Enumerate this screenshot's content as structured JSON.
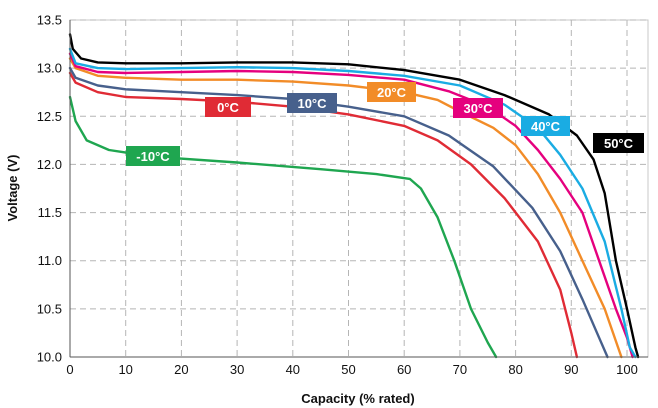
{
  "chart_data": {
    "type": "line",
    "title": "",
    "xlabel": "Capacity (% rated)",
    "ylabel": "Voltage (V)",
    "xlim": [
      0,
      102
    ],
    "ylim": [
      10.0,
      13.5
    ],
    "xticks": [
      0,
      10,
      20,
      30,
      40,
      50,
      60,
      70,
      80,
      90,
      100
    ],
    "yticks": [
      10.0,
      10.5,
      11.0,
      11.5,
      12.0,
      12.5,
      13.0,
      13.5
    ],
    "ytick_labels": [
      "10.0",
      "10.5",
      "11.0",
      "11.5",
      "12.0",
      "12.5",
      "13.0",
      "13.5"
    ],
    "grid": true,
    "grid_style": "dashed",
    "series": [
      {
        "name": "-10°C",
        "color": "#1fa650",
        "points": [
          [
            0,
            12.7
          ],
          [
            1,
            12.45
          ],
          [
            3,
            12.25
          ],
          [
            7,
            12.15
          ],
          [
            15,
            12.08
          ],
          [
            30,
            12.02
          ],
          [
            45,
            11.95
          ],
          [
            55,
            11.9
          ],
          [
            61,
            11.85
          ],
          [
            63,
            11.75
          ],
          [
            66,
            11.45
          ],
          [
            69,
            11.0
          ],
          [
            72,
            10.5
          ],
          [
            75,
            10.15
          ],
          [
            76.5,
            10.0
          ]
        ]
      },
      {
        "name": "0°C",
        "color": "#e02b35",
        "points": [
          [
            0,
            12.95
          ],
          [
            1,
            12.85
          ],
          [
            5,
            12.75
          ],
          [
            10,
            12.7
          ],
          [
            20,
            12.68
          ],
          [
            30,
            12.65
          ],
          [
            40,
            12.6
          ],
          [
            50,
            12.52
          ],
          [
            60,
            12.4
          ],
          [
            66,
            12.25
          ],
          [
            72,
            12.0
          ],
          [
            78,
            11.65
          ],
          [
            84,
            11.2
          ],
          [
            88,
            10.7
          ],
          [
            90,
            10.25
          ],
          [
            91,
            10.0
          ]
        ]
      },
      {
        "name": "10°C",
        "color": "#47608c",
        "points": [
          [
            0,
            13.0
          ],
          [
            1,
            12.9
          ],
          [
            5,
            12.82
          ],
          [
            10,
            12.78
          ],
          [
            20,
            12.75
          ],
          [
            30,
            12.72
          ],
          [
            40,
            12.68
          ],
          [
            50,
            12.6
          ],
          [
            60,
            12.5
          ],
          [
            68,
            12.3
          ],
          [
            76,
            11.98
          ],
          [
            83,
            11.55
          ],
          [
            88,
            11.1
          ],
          [
            92,
            10.6
          ],
          [
            95,
            10.2
          ],
          [
            96.5,
            10.0
          ]
        ]
      },
      {
        "name": "20°C",
        "color": "#f28c28",
        "points": [
          [
            0,
            13.1
          ],
          [
            1,
            13.0
          ],
          [
            5,
            12.92
          ],
          [
            10,
            12.9
          ],
          [
            20,
            12.88
          ],
          [
            30,
            12.88
          ],
          [
            40,
            12.86
          ],
          [
            50,
            12.82
          ],
          [
            60,
            12.75
          ],
          [
            66,
            12.67
          ],
          [
            70,
            12.55
          ],
          [
            76,
            12.38
          ],
          [
            80,
            12.2
          ],
          [
            84,
            11.9
          ],
          [
            88,
            11.5
          ],
          [
            92,
            11.0
          ],
          [
            96,
            10.5
          ],
          [
            99,
            10.0
          ]
        ]
      },
      {
        "name": "30°C",
        "color": "#e5007e",
        "points": [
          [
            0,
            13.15
          ],
          [
            1,
            13.02
          ],
          [
            5,
            12.96
          ],
          [
            10,
            12.95
          ],
          [
            20,
            12.96
          ],
          [
            30,
            12.97
          ],
          [
            40,
            12.96
          ],
          [
            50,
            12.93
          ],
          [
            60,
            12.88
          ],
          [
            68,
            12.76
          ],
          [
            75,
            12.6
          ],
          [
            80,
            12.4
          ],
          [
            84,
            12.15
          ],
          [
            88,
            11.85
          ],
          [
            92,
            11.5
          ],
          [
            95,
            11.0
          ],
          [
            98,
            10.5
          ],
          [
            100,
            10.2
          ],
          [
            101,
            10.0
          ]
        ]
      },
      {
        "name": "40°C",
        "color": "#1aace3",
        "points": [
          [
            0,
            13.2
          ],
          [
            1,
            13.05
          ],
          [
            5,
            13.0
          ],
          [
            10,
            12.99
          ],
          [
            20,
            13.0
          ],
          [
            30,
            13.01
          ],
          [
            40,
            13.0
          ],
          [
            50,
            12.97
          ],
          [
            60,
            12.92
          ],
          [
            70,
            12.82
          ],
          [
            78,
            12.62
          ],
          [
            84,
            12.38
          ],
          [
            88,
            12.1
          ],
          [
            92,
            11.75
          ],
          [
            96,
            11.2
          ],
          [
            99,
            10.5
          ],
          [
            100.5,
            10.1
          ],
          [
            101.5,
            10.0
          ]
        ]
      },
      {
        "name": "50°C",
        "color": "#000000",
        "points": [
          [
            0,
            13.35
          ],
          [
            0.5,
            13.2
          ],
          [
            2,
            13.1
          ],
          [
            5,
            13.06
          ],
          [
            10,
            13.05
          ],
          [
            20,
            13.05
          ],
          [
            30,
            13.06
          ],
          [
            40,
            13.06
          ],
          [
            50,
            13.04
          ],
          [
            60,
            12.98
          ],
          [
            70,
            12.88
          ],
          [
            78,
            12.72
          ],
          [
            86,
            12.52
          ],
          [
            91,
            12.3
          ],
          [
            94,
            12.05
          ],
          [
            96,
            11.7
          ],
          [
            98,
            11.0
          ],
          [
            100,
            10.5
          ],
          [
            101.5,
            10.1
          ],
          [
            102,
            10.0
          ]
        ]
      }
    ]
  }
}
